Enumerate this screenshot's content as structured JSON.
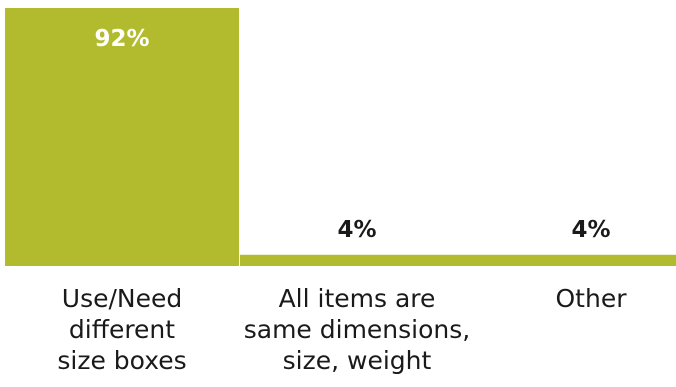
{
  "chart_data": {
    "type": "bar",
    "categories": [
      [
        "Use/Need",
        "different",
        "size boxes"
      ],
      [
        "All items are",
        "same dimensions,",
        "size, weight"
      ],
      [
        "Other"
      ]
    ],
    "values": [
      92,
      4,
      4
    ],
    "data_labels": [
      "92%",
      "4%",
      "4%"
    ],
    "title": "",
    "xlabel": "",
    "ylabel": "",
    "ylim": [
      0,
      92
    ],
    "grid": false,
    "legend": "none",
    "colors": {
      "bar": "#b2bb2e",
      "label_inside": "#ffffff",
      "label_outside": "#1a1a1a",
      "category_text": "#1a1a1a"
    }
  }
}
